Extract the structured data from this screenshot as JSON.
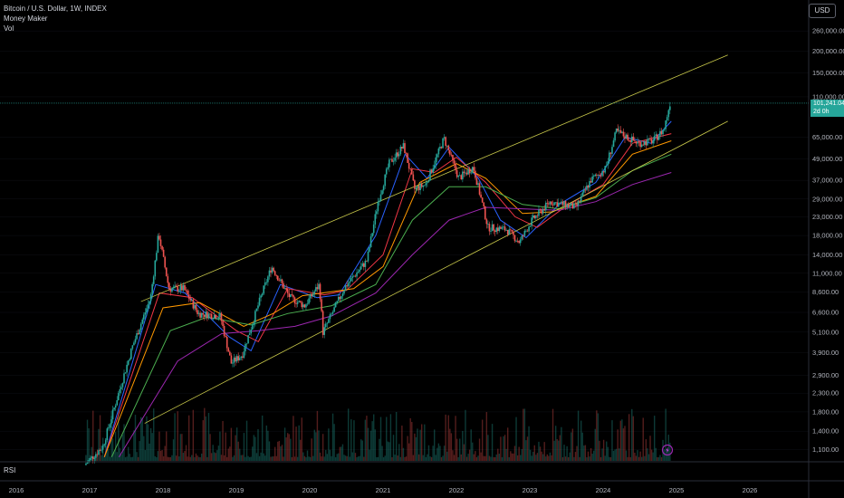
{
  "legend": {
    "title": "Bitcoin / U.S. Dollar, 1W, INDEX",
    "indicator1": "Money Maker",
    "indicator2": "Vol"
  },
  "currency_button": "USD",
  "rsi_label": "RSI",
  "last_price": {
    "value": "101,241.04",
    "countdown": "2d 0h"
  },
  "colors": {
    "background": "#000000",
    "up": "#26a69a",
    "down": "#ef5350",
    "channel": "#c8c84a",
    "ma_blue": "#2962ff",
    "ma_red": "#f23645",
    "ma_orange": "#ff9800",
    "ma_green": "#4caf50",
    "ma_purple": "#9c27b0"
  },
  "chart_data": {
    "type": "candlestick",
    "title": "Bitcoin / U.S. Dollar, 1W, INDEX",
    "y_scale": "log",
    "ylim": [
      950,
      330000
    ],
    "y_ticks": [
      "260,000.00",
      "200,000.00",
      "150,000.00",
      "110,000.00",
      "65,000.00",
      "49,000.00",
      "37,000.00",
      "29,000.00",
      "23,000.00",
      "18,000.00",
      "14,000.00",
      "11,000.00",
      "8,600.00",
      "6,600.00",
      "5,100.00",
      "3,900.00",
      "2,900.00",
      "2,300.00",
      "1,800.00",
      "1,400.00",
      "1,100.00"
    ],
    "x_ticks": [
      "2016",
      "2017",
      "2018",
      "2019",
      "2020",
      "2021",
      "2022",
      "2023",
      "2024",
      "2025",
      "2026"
    ],
    "price_path": [
      {
        "date": 2016.95,
        "price": 900
      },
      {
        "date": 2017.2,
        "price": 1150
      },
      {
        "date": 2017.4,
        "price": 2200
      },
      {
        "date": 2017.6,
        "price": 4200
      },
      {
        "date": 2017.85,
        "price": 8000
      },
      {
        "date": 2017.96,
        "price": 18500
      },
      {
        "date": 2018.1,
        "price": 9000
      },
      {
        "date": 2018.3,
        "price": 9000
      },
      {
        "date": 2018.5,
        "price": 6500
      },
      {
        "date": 2018.8,
        "price": 6300
      },
      {
        "date": 2018.95,
        "price": 3400
      },
      {
        "date": 2019.1,
        "price": 3800
      },
      {
        "date": 2019.35,
        "price": 8000
      },
      {
        "date": 2019.5,
        "price": 12000
      },
      {
        "date": 2019.75,
        "price": 8000
      },
      {
        "date": 2019.95,
        "price": 7200
      },
      {
        "date": 2020.15,
        "price": 9500
      },
      {
        "date": 2020.2,
        "price": 5100
      },
      {
        "date": 2020.5,
        "price": 9200
      },
      {
        "date": 2020.8,
        "price": 13000
      },
      {
        "date": 2020.95,
        "price": 28000
      },
      {
        "date": 2021.1,
        "price": 46000
      },
      {
        "date": 2021.3,
        "price": 58000
      },
      {
        "date": 2021.45,
        "price": 33000
      },
      {
        "date": 2021.6,
        "price": 35000
      },
      {
        "date": 2021.85,
        "price": 64000
      },
      {
        "date": 2022.05,
        "price": 38000
      },
      {
        "date": 2022.25,
        "price": 44000
      },
      {
        "date": 2022.45,
        "price": 20000
      },
      {
        "date": 2022.7,
        "price": 19500
      },
      {
        "date": 2022.88,
        "price": 16500
      },
      {
        "date": 2023.05,
        "price": 22000
      },
      {
        "date": 2023.3,
        "price": 28000
      },
      {
        "date": 2023.65,
        "price": 26000
      },
      {
        "date": 2023.85,
        "price": 37000
      },
      {
        "date": 2024.05,
        "price": 43000
      },
      {
        "date": 2024.2,
        "price": 70000
      },
      {
        "date": 2024.5,
        "price": 60000
      },
      {
        "date": 2024.7,
        "price": 62000
      },
      {
        "date": 2024.85,
        "price": 72000
      },
      {
        "date": 2024.93,
        "price": 101241
      }
    ],
    "channel": {
      "upper": [
        {
          "date": 2017.7,
          "price": 7600
        },
        {
          "date": 2025.7,
          "price": 190000
        }
      ],
      "lower": [
        {
          "date": 2017.75,
          "price": 1550
        },
        {
          "date": 2025.7,
          "price": 80000
        }
      ]
    },
    "moving_averages": [
      {
        "color": "ma_blue",
        "points": [
          [
            2017.2,
            1000
          ],
          [
            2017.9,
            9500
          ],
          [
            2018.3,
            8500
          ],
          [
            2018.9,
            4800
          ],
          [
            2019.2,
            4000
          ],
          [
            2019.6,
            9500
          ],
          [
            2020.1,
            8000
          ],
          [
            2020.4,
            8300
          ],
          [
            2020.9,
            18000
          ],
          [
            2021.3,
            52000
          ],
          [
            2021.6,
            38000
          ],
          [
            2021.9,
            57000
          ],
          [
            2022.3,
            38000
          ],
          [
            2022.6,
            22000
          ],
          [
            2022.95,
            17500
          ],
          [
            2023.4,
            27000
          ],
          [
            2023.9,
            36000
          ],
          [
            2024.3,
            65000
          ],
          [
            2024.65,
            60000
          ],
          [
            2024.93,
            80000
          ]
        ]
      },
      {
        "color": "ma_red",
        "points": [
          [
            2017.2,
            1000
          ],
          [
            2017.95,
            8500
          ],
          [
            2018.4,
            8000
          ],
          [
            2019.0,
            5200
          ],
          [
            2019.3,
            4500
          ],
          [
            2019.7,
            9000
          ],
          [
            2020.2,
            8300
          ],
          [
            2020.5,
            8800
          ],
          [
            2021.0,
            14000
          ],
          [
            2021.4,
            43000
          ],
          [
            2021.7,
            41000
          ],
          [
            2022.0,
            50000
          ],
          [
            2022.4,
            36000
          ],
          [
            2022.8,
            23000
          ],
          [
            2023.1,
            20000
          ],
          [
            2023.5,
            26500
          ],
          [
            2024.0,
            35000
          ],
          [
            2024.4,
            60000
          ],
          [
            2024.93,
            68000
          ]
        ]
      },
      {
        "color": "ma_orange",
        "points": [
          [
            2017.2,
            1000
          ],
          [
            2018.0,
            7000
          ],
          [
            2018.5,
            7500
          ],
          [
            2019.1,
            5500
          ],
          [
            2019.5,
            6500
          ],
          [
            2019.9,
            8200
          ],
          [
            2020.6,
            9000
          ],
          [
            2021.0,
            12000
          ],
          [
            2021.5,
            36000
          ],
          [
            2022.0,
            46000
          ],
          [
            2022.4,
            38000
          ],
          [
            2022.9,
            24000
          ],
          [
            2023.3,
            24500
          ],
          [
            2023.9,
            30000
          ],
          [
            2024.4,
            52000
          ],
          [
            2024.93,
            62000
          ]
        ]
      },
      {
        "color": "ma_green",
        "points": [
          [
            2017.3,
            1000
          ],
          [
            2018.1,
            5200
          ],
          [
            2018.6,
            6200
          ],
          [
            2019.2,
            5600
          ],
          [
            2019.7,
            6500
          ],
          [
            2020.3,
            7200
          ],
          [
            2020.9,
            9500
          ],
          [
            2021.4,
            22000
          ],
          [
            2021.9,
            34000
          ],
          [
            2022.4,
            34000
          ],
          [
            2022.9,
            27000
          ],
          [
            2023.4,
            25500
          ],
          [
            2023.9,
            29500
          ],
          [
            2024.4,
            42000
          ],
          [
            2024.93,
            52000
          ]
        ]
      },
      {
        "color": "ma_purple",
        "points": [
          [
            2017.4,
            1000
          ],
          [
            2018.2,
            3500
          ],
          [
            2018.8,
            5000
          ],
          [
            2019.3,
            5200
          ],
          [
            2019.8,
            5500
          ],
          [
            2020.3,
            6300
          ],
          [
            2020.9,
            8500
          ],
          [
            2021.4,
            14000
          ],
          [
            2021.9,
            22000
          ],
          [
            2022.4,
            26000
          ],
          [
            2022.9,
            25500
          ],
          [
            2023.4,
            25000
          ],
          [
            2023.9,
            28000
          ],
          [
            2024.4,
            35000
          ],
          [
            2024.93,
            41000
          ]
        ]
      }
    ]
  }
}
